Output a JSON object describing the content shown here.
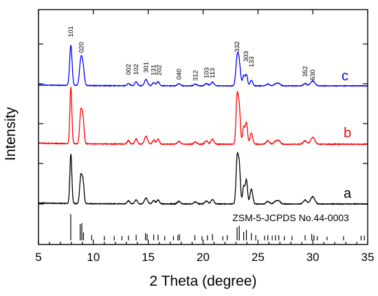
{
  "chart_data": {
    "type": "line",
    "title": "",
    "xlabel": "2 Theta (degree)",
    "ylabel": "Intensity",
    "xlim": [
      5,
      35
    ],
    "xticks": [
      5,
      10,
      15,
      20,
      25,
      30,
      35
    ],
    "yticks_unlabeled": 5,
    "grid": false,
    "reference_label": "ZSM-5-JCPDS No.44-0003",
    "reference_lines": [
      {
        "x": 7.94,
        "h": 1.0
      },
      {
        "x": 8.8,
        "h": 0.62
      },
      {
        "x": 8.95,
        "h": 0.66
      },
      {
        "x": 9.1,
        "h": 0.3
      },
      {
        "x": 9.85,
        "h": 0.2
      },
      {
        "x": 11.0,
        "h": 0.16
      },
      {
        "x": 11.9,
        "h": 0.16
      },
      {
        "x": 12.6,
        "h": 0.16
      },
      {
        "x": 13.2,
        "h": 0.18
      },
      {
        "x": 13.9,
        "h": 0.22
      },
      {
        "x": 14.75,
        "h": 0.28
      },
      {
        "x": 14.9,
        "h": 0.24
      },
      {
        "x": 15.5,
        "h": 0.22
      },
      {
        "x": 15.9,
        "h": 0.22
      },
      {
        "x": 16.5,
        "h": 0.16
      },
      {
        "x": 17.3,
        "h": 0.16
      },
      {
        "x": 17.7,
        "h": 0.2
      },
      {
        "x": 17.85,
        "h": 0.24
      },
      {
        "x": 19.25,
        "h": 0.2
      },
      {
        "x": 19.9,
        "h": 0.16
      },
      {
        "x": 20.4,
        "h": 0.2
      },
      {
        "x": 20.85,
        "h": 0.24
      },
      {
        "x": 21.8,
        "h": 0.16
      },
      {
        "x": 22.2,
        "h": 0.2
      },
      {
        "x": 23.1,
        "h": 0.5
      },
      {
        "x": 23.3,
        "h": 0.56
      },
      {
        "x": 23.7,
        "h": 0.32
      },
      {
        "x": 23.95,
        "h": 0.4
      },
      {
        "x": 24.4,
        "h": 0.28
      },
      {
        "x": 24.8,
        "h": 0.2
      },
      {
        "x": 25.6,
        "h": 0.18
      },
      {
        "x": 25.9,
        "h": 0.2
      },
      {
        "x": 26.3,
        "h": 0.18
      },
      {
        "x": 26.6,
        "h": 0.2
      },
      {
        "x": 26.9,
        "h": 0.2
      },
      {
        "x": 27.4,
        "h": 0.16
      },
      {
        "x": 28.1,
        "h": 0.16
      },
      {
        "x": 29.3,
        "h": 0.2
      },
      {
        "x": 29.9,
        "h": 0.24
      },
      {
        "x": 30.1,
        "h": 0.2
      },
      {
        "x": 30.4,
        "h": 0.16
      },
      {
        "x": 31.3,
        "h": 0.14
      },
      {
        "x": 32.8,
        "h": 0.16
      },
      {
        "x": 34.4,
        "h": 0.18
      },
      {
        "x": 34.7,
        "h": 0.18
      }
    ],
    "series": [
      {
        "label": "a",
        "color": "#000000",
        "peaks": [
          [
            7.95,
            1.0,
            0.09
          ],
          [
            8.85,
            0.52,
            0.1
          ],
          [
            9.05,
            0.45,
            0.1
          ],
          [
            13.2,
            0.06,
            0.12
          ],
          [
            13.9,
            0.08,
            0.12
          ],
          [
            14.8,
            0.12,
            0.14
          ],
          [
            15.5,
            0.07,
            0.12
          ],
          [
            15.9,
            0.08,
            0.12
          ],
          [
            17.8,
            0.05,
            0.14
          ],
          [
            19.3,
            0.04,
            0.14
          ],
          [
            20.3,
            0.06,
            0.14
          ],
          [
            20.85,
            0.09,
            0.14
          ],
          [
            23.1,
            0.9,
            0.1
          ],
          [
            23.3,
            0.75,
            0.1
          ],
          [
            23.7,
            0.35,
            0.1
          ],
          [
            23.95,
            0.48,
            0.1
          ],
          [
            24.4,
            0.3,
            0.12
          ],
          [
            25.9,
            0.05,
            0.15
          ],
          [
            26.6,
            0.05,
            0.15
          ],
          [
            26.9,
            0.06,
            0.15
          ],
          [
            29.3,
            0.08,
            0.16
          ],
          [
            29.9,
            0.1,
            0.16
          ],
          [
            30.1,
            0.08,
            0.15
          ]
        ]
      },
      {
        "label": "b",
        "color": "#ff0000",
        "peaks": [
          [
            7.95,
            1.0,
            0.09
          ],
          [
            8.85,
            0.55,
            0.1
          ],
          [
            9.05,
            0.46,
            0.1
          ],
          [
            13.2,
            0.06,
            0.12
          ],
          [
            13.9,
            0.09,
            0.12
          ],
          [
            14.8,
            0.14,
            0.14
          ],
          [
            15.5,
            0.07,
            0.12
          ],
          [
            15.9,
            0.09,
            0.12
          ],
          [
            17.8,
            0.05,
            0.14
          ],
          [
            19.3,
            0.04,
            0.14
          ],
          [
            20.3,
            0.06,
            0.14
          ],
          [
            20.85,
            0.09,
            0.14
          ],
          [
            23.1,
            0.82,
            0.1
          ],
          [
            23.3,
            0.62,
            0.1
          ],
          [
            23.7,
            0.3,
            0.1
          ],
          [
            23.95,
            0.38,
            0.1
          ],
          [
            24.4,
            0.2,
            0.12
          ],
          [
            25.9,
            0.06,
            0.15
          ],
          [
            26.6,
            0.05,
            0.15
          ],
          [
            26.9,
            0.06,
            0.15
          ],
          [
            29.3,
            0.06,
            0.16
          ],
          [
            29.9,
            0.08,
            0.16
          ],
          [
            30.1,
            0.07,
            0.15
          ]
        ]
      },
      {
        "label": "c",
        "color": "#0000ff",
        "peaks": [
          [
            7.95,
            0.88,
            0.11
          ],
          [
            8.85,
            0.52,
            0.12
          ],
          [
            9.05,
            0.4,
            0.12
          ],
          [
            13.2,
            0.05,
            0.12
          ],
          [
            13.9,
            0.09,
            0.12
          ],
          [
            14.8,
            0.14,
            0.14
          ],
          [
            15.5,
            0.07,
            0.12
          ],
          [
            15.9,
            0.09,
            0.12
          ],
          [
            17.8,
            0.05,
            0.14
          ],
          [
            19.3,
            0.04,
            0.14
          ],
          [
            20.3,
            0.05,
            0.14
          ],
          [
            20.85,
            0.08,
            0.14
          ],
          [
            23.1,
            0.58,
            0.12
          ],
          [
            23.3,
            0.45,
            0.12
          ],
          [
            23.7,
            0.22,
            0.1
          ],
          [
            23.95,
            0.25,
            0.1
          ],
          [
            24.4,
            0.12,
            0.12
          ],
          [
            25.9,
            0.04,
            0.15
          ],
          [
            26.6,
            0.04,
            0.15
          ],
          [
            26.9,
            0.05,
            0.15
          ],
          [
            29.3,
            0.05,
            0.16
          ],
          [
            29.9,
            0.07,
            0.16
          ],
          [
            30.1,
            0.06,
            0.15
          ]
        ]
      }
    ],
    "peak_labels": [
      {
        "text": "101",
        "x": 7.95
      },
      {
        "text": "020",
        "x": 8.9
      },
      {
        "text": "002",
        "x": 13.2
      },
      {
        "text": "102",
        "x": 13.9
      },
      {
        "text": "301",
        "x": 14.8
      },
      {
        "text": "131",
        "x": 15.5
      },
      {
        "text": "202",
        "x": 16.0
      },
      {
        "text": "040",
        "x": 17.8
      },
      {
        "text": "312",
        "x": 19.3
      },
      {
        "text": "103",
        "x": 20.3
      },
      {
        "text": "113",
        "x": 20.85
      },
      {
        "text": "332",
        "x": 23.1
      },
      {
        "text": "303",
        "x": 23.9
      },
      {
        "text": "133",
        "x": 24.4
      },
      {
        "text": "352",
        "x": 29.3
      },
      {
        "text": "630",
        "x": 30.0
      }
    ]
  }
}
